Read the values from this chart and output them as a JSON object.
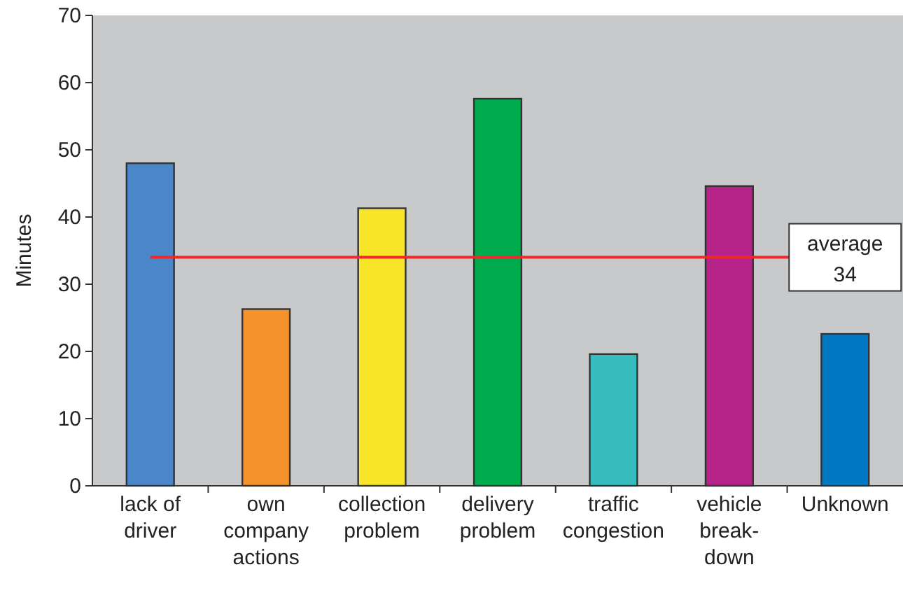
{
  "chart_data": {
    "type": "bar",
    "ylabel": "Minutes",
    "categories": [
      "lack of driver",
      "own company actions",
      "collection problem",
      "delivery problem",
      "traffic congestion",
      "vehicle break-down",
      "Unknown"
    ],
    "values": [
      48,
      26.3,
      41.3,
      57.6,
      19.6,
      44.6,
      22.6
    ],
    "colors": [
      "#4a86c8",
      "#f3922b",
      "#f8e52a",
      "#00ab4e",
      "#36bcbd",
      "#b52288",
      "#0079c2"
    ],
    "ylim": [
      0,
      70
    ],
    "yticks": [
      0,
      10,
      20,
      30,
      40,
      50,
      60,
      70
    ],
    "grid": false,
    "ref_lines": [
      {
        "axis": "y",
        "value": 34,
        "label": "average 34",
        "color": "#ee2a2a"
      }
    ]
  }
}
